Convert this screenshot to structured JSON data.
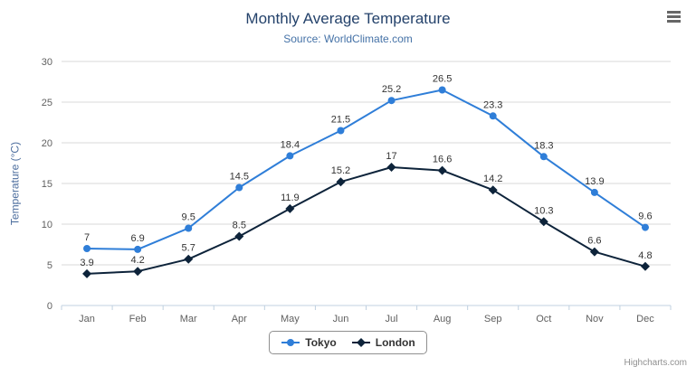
{
  "chart_data": {
    "type": "line",
    "title": "Monthly Average Temperature",
    "subtitle": "Source: WorldClimate.com",
    "categories": [
      "Jan",
      "Feb",
      "Mar",
      "Apr",
      "May",
      "Jun",
      "Jul",
      "Aug",
      "Sep",
      "Oct",
      "Nov",
      "Dec"
    ],
    "series": [
      {
        "name": "Tokyo",
        "color": "#2f7ed8",
        "marker": "circle",
        "values": [
          7,
          6.9,
          9.5,
          14.5,
          18.4,
          21.5,
          25.2,
          26.5,
          23.3,
          18.3,
          13.9,
          9.6
        ]
      },
      {
        "name": "London",
        "color": "#0d233a",
        "marker": "diamond",
        "values": [
          3.9,
          4.2,
          5.7,
          8.5,
          11.9,
          15.2,
          17,
          16.6,
          14.2,
          10.3,
          6.6,
          4.8
        ]
      }
    ],
    "xlabel": "",
    "ylabel": "Temperature (°C)",
    "ylim": [
      0,
      30
    ],
    "ytick_step": 5,
    "grid": true,
    "legend_position": "bottom",
    "colors": {
      "grid": "#d8d8d8",
      "axis": "#c0d0e0",
      "tick_label": "#606060"
    }
  },
  "credits": {
    "text": "Highcharts.com"
  }
}
